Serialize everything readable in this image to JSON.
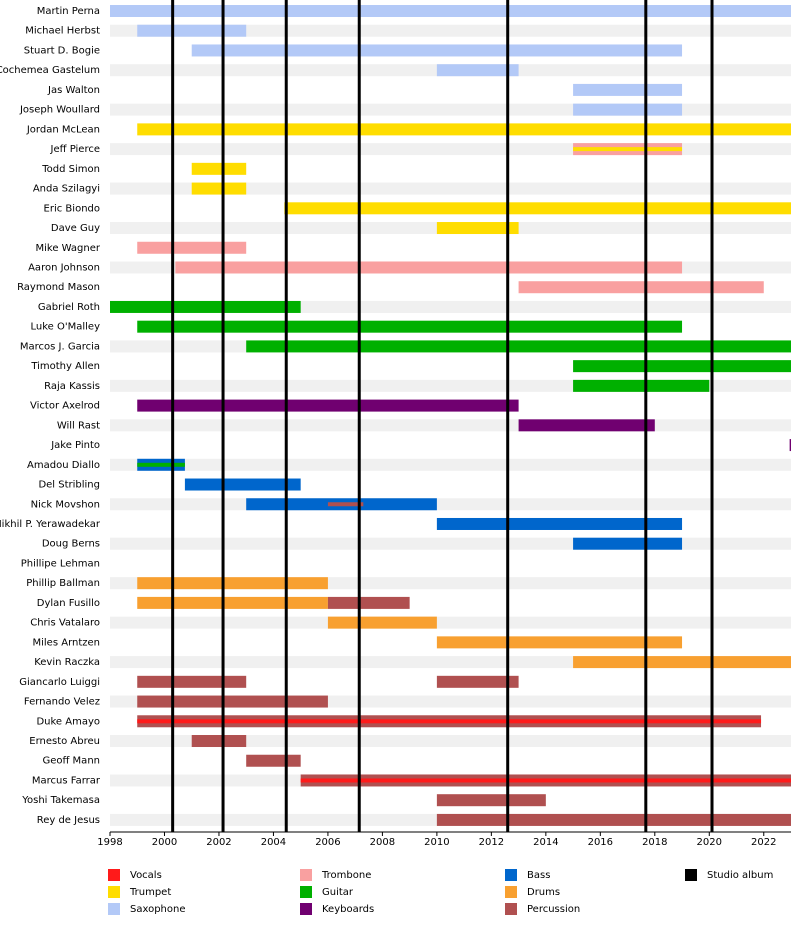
{
  "chart_data": {
    "type": "timeline",
    "members": [
      "Martin Perna",
      "Michael Herbst",
      "Stuart D. Bogie",
      "Cochemea Gastelum",
      "Jas Walton",
      "Joseph Woullard",
      "Jordan McLean",
      "Jeff Pierce",
      "Todd Simon",
      "Anda Szilagyi",
      "Eric Biondo",
      "Dave Guy",
      "Mike Wagner",
      "Aaron Johnson",
      "Raymond Mason",
      "Gabriel Roth",
      "Luke O'Malley",
      "Marcos J. Garcia",
      "Timothy Allen",
      "Raja Kassis",
      "Victor Axelrod",
      "Will Rast",
      "Jake Pinto",
      "Amadou Diallo",
      "Del Stribling",
      "Nick Movshon",
      "Nikhil P. Yerawadekar",
      "Doug Berns",
      "Phillipe Lehman",
      "Phillip Ballman",
      "Dylan Fusillo",
      "Chris Vatalaro",
      "Miles Arntzen",
      "Kevin Raczka",
      "Giancarlo Luiggi",
      "Fernando Velez",
      "Duke Amayo",
      "Ernesto Abreu",
      "Geoff Mann",
      "Marcus Farrar",
      "Yoshi Takemasa",
      "Rey de Jesus"
    ],
    "roles": [
      {
        "name": "Vocals",
        "color": "#ff1a1a"
      },
      {
        "name": "Trumpet",
        "color": "#ffdd00"
      },
      {
        "name": "Saxophone",
        "color": "#b3c9f7"
      },
      {
        "name": "Trombone",
        "color": "#f9a0a0"
      },
      {
        "name": "Guitar",
        "color": "#00b000"
      },
      {
        "name": "Keyboards",
        "color": "#700070"
      },
      {
        "name": "Bass",
        "color": "#0066cc"
      },
      {
        "name": "Drums",
        "color": "#f8a030"
      },
      {
        "name": "Percussion",
        "color": "#b05050"
      }
    ],
    "albums_legend": {
      "name": "Studio album",
      "color": "#000000"
    },
    "albums": [
      2000.3,
      2002.15,
      2004.47,
      2007.15,
      2012.6,
      2017.67,
      2020.1
    ],
    "bars": [
      {
        "member": 0,
        "role": 2,
        "start": 1998,
        "end": 2023
      },
      {
        "member": 1,
        "role": 2,
        "start": 1999,
        "end": 2003
      },
      {
        "member": 2,
        "role": 2,
        "start": 2001,
        "end": 2019
      },
      {
        "member": 3,
        "role": 2,
        "start": 2010,
        "end": 2013
      },
      {
        "member": 4,
        "role": 2,
        "start": 2015,
        "end": 2019
      },
      {
        "member": 5,
        "role": 2,
        "start": 2015,
        "end": 2019
      },
      {
        "member": 6,
        "role": 1,
        "start": 1999,
        "end": 2023
      },
      {
        "member": 7,
        "role": 3,
        "start": 2015,
        "end": 2019
      },
      {
        "member": 8,
        "role": 1,
        "start": 2001,
        "end": 2003
      },
      {
        "member": 9,
        "role": 1,
        "start": 2001,
        "end": 2003
      },
      {
        "member": 10,
        "role": 1,
        "start": 2004.4,
        "end": 2023
      },
      {
        "member": 11,
        "role": 1,
        "start": 2010,
        "end": 2013
      },
      {
        "member": 12,
        "role": 3,
        "start": 1999,
        "end": 2003
      },
      {
        "member": 13,
        "role": 3,
        "start": 2000.4,
        "end": 2019
      },
      {
        "member": 14,
        "role": 3,
        "start": 2013,
        "end": 2022
      },
      {
        "member": 15,
        "role": 4,
        "start": 1998,
        "end": 2005
      },
      {
        "member": 16,
        "role": 4,
        "start": 1999,
        "end": 2019
      },
      {
        "member": 17,
        "role": 4,
        "start": 2003,
        "end": 2023
      },
      {
        "member": 18,
        "role": 4,
        "start": 2015,
        "end": 2023
      },
      {
        "member": 19,
        "role": 4,
        "start": 2015,
        "end": 2020
      },
      {
        "member": 20,
        "role": 5,
        "start": 1999,
        "end": 2013
      },
      {
        "member": 21,
        "role": 5,
        "start": 2013,
        "end": 2018
      },
      {
        "member": 22,
        "role": 5,
        "start": 2022.95,
        "end": 2023
      },
      {
        "member": 23,
        "role": 6,
        "start": 1999,
        "end": 2000.75
      },
      {
        "member": 24,
        "role": 6,
        "start": 2000.75,
        "end": 2005
      },
      {
        "member": 25,
        "role": 6,
        "start": 2003,
        "end": 2010
      },
      {
        "member": 26,
        "role": 6,
        "start": 2010,
        "end": 2019
      },
      {
        "member": 27,
        "role": 6,
        "start": 2015,
        "end": 2019
      },
      {
        "member": 29,
        "role": 7,
        "start": 1999,
        "end": 2006
      },
      {
        "member": 30,
        "role": 7,
        "start": 1999,
        "end": 2006
      },
      {
        "member": 30,
        "role": 8,
        "start": 2006,
        "end": 2009
      },
      {
        "member": 31,
        "role": 7,
        "start": 2006,
        "end": 2010
      },
      {
        "member": 32,
        "role": 7,
        "start": 2010,
        "end": 2019
      },
      {
        "member": 33,
        "role": 7,
        "start": 2015,
        "end": 2023
      },
      {
        "member": 34,
        "role": 8,
        "start": 1999,
        "end": 2003
      },
      {
        "member": 34,
        "role": 8,
        "start": 2010,
        "end": 2013
      },
      {
        "member": 35,
        "role": 8,
        "start": 1999,
        "end": 2006
      },
      {
        "member": 36,
        "role": 8,
        "start": 1999,
        "end": 2021.9
      },
      {
        "member": 37,
        "role": 8,
        "start": 2001,
        "end": 2003
      },
      {
        "member": 38,
        "role": 8,
        "start": 2003,
        "end": 2005
      },
      {
        "member": 39,
        "role": 8,
        "start": 2005,
        "end": 2023
      },
      {
        "member": 40,
        "role": 8,
        "start": 2010,
        "end": 2014
      },
      {
        "member": 41,
        "role": 8,
        "start": 2010,
        "end": 2023
      }
    ],
    "stripes": [
      {
        "member": 7,
        "role": 1,
        "start": 2015,
        "end": 2019
      },
      {
        "member": 23,
        "role": 4,
        "start": 1999,
        "end": 2000.75
      },
      {
        "member": 25,
        "role": 8,
        "start": 2006,
        "end": 2007.3
      },
      {
        "member": 36,
        "role": 0,
        "start": 1999,
        "end": 2021.9
      },
      {
        "member": 39,
        "role": 0,
        "start": 2005,
        "end": 2023
      }
    ],
    "xlim": [
      1998,
      2023
    ],
    "xticks": [
      1998,
      2000,
      2002,
      2004,
      2006,
      2008,
      2010,
      2012,
      2014,
      2016,
      2018,
      2020,
      2022
    ]
  }
}
